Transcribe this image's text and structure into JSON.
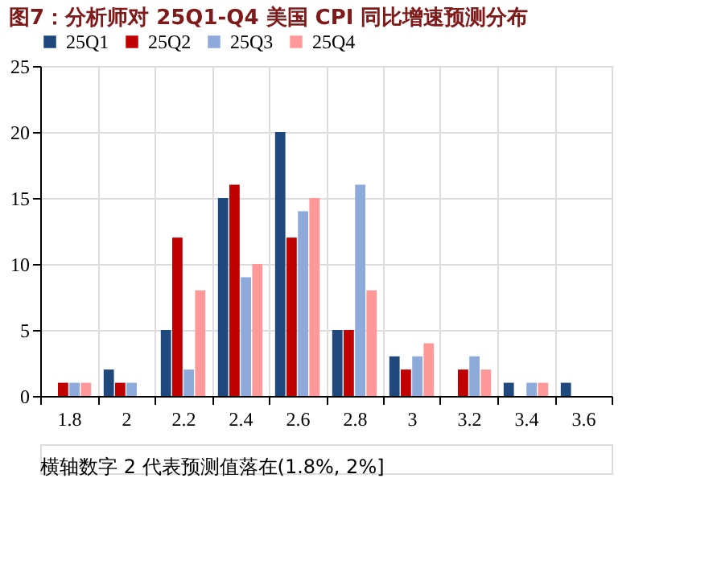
{
  "chart_data": {
    "type": "bar",
    "title": "图7：分析师对 25Q1-Q4 美国 CPI 同比增速预测分布",
    "categories": [
      "1.8",
      "2",
      "2.2",
      "2.4",
      "2.6",
      "2.8",
      "3",
      "3.2",
      "3.4",
      "3.6"
    ],
    "series": [
      {
        "name": "25Q1",
        "color": "#1f497d",
        "values": [
          0,
          2,
          5,
          15,
          20,
          5,
          3,
          0,
          1,
          1
        ]
      },
      {
        "name": "25Q2",
        "color": "#c00000",
        "values": [
          1,
          1,
          12,
          16,
          12,
          5,
          2,
          2,
          0,
          0
        ]
      },
      {
        "name": "25Q3",
        "color": "#8eaadb",
        "values": [
          1,
          1,
          2,
          9,
          14,
          16,
          3,
          3,
          1,
          0
        ]
      },
      {
        "name": "25Q4",
        "color": "#ff9999",
        "values": [
          1,
          0,
          8,
          10,
          15,
          8,
          4,
          2,
          1,
          0
        ]
      }
    ],
    "ylim": [
      0,
      25
    ],
    "yticks": [
      0,
      5,
      10,
      15,
      20,
      25
    ],
    "grid": true,
    "legend": "top",
    "annotations": [
      "横轴数字 2 代表预测值落在(1.8%, 2%]"
    ]
  }
}
